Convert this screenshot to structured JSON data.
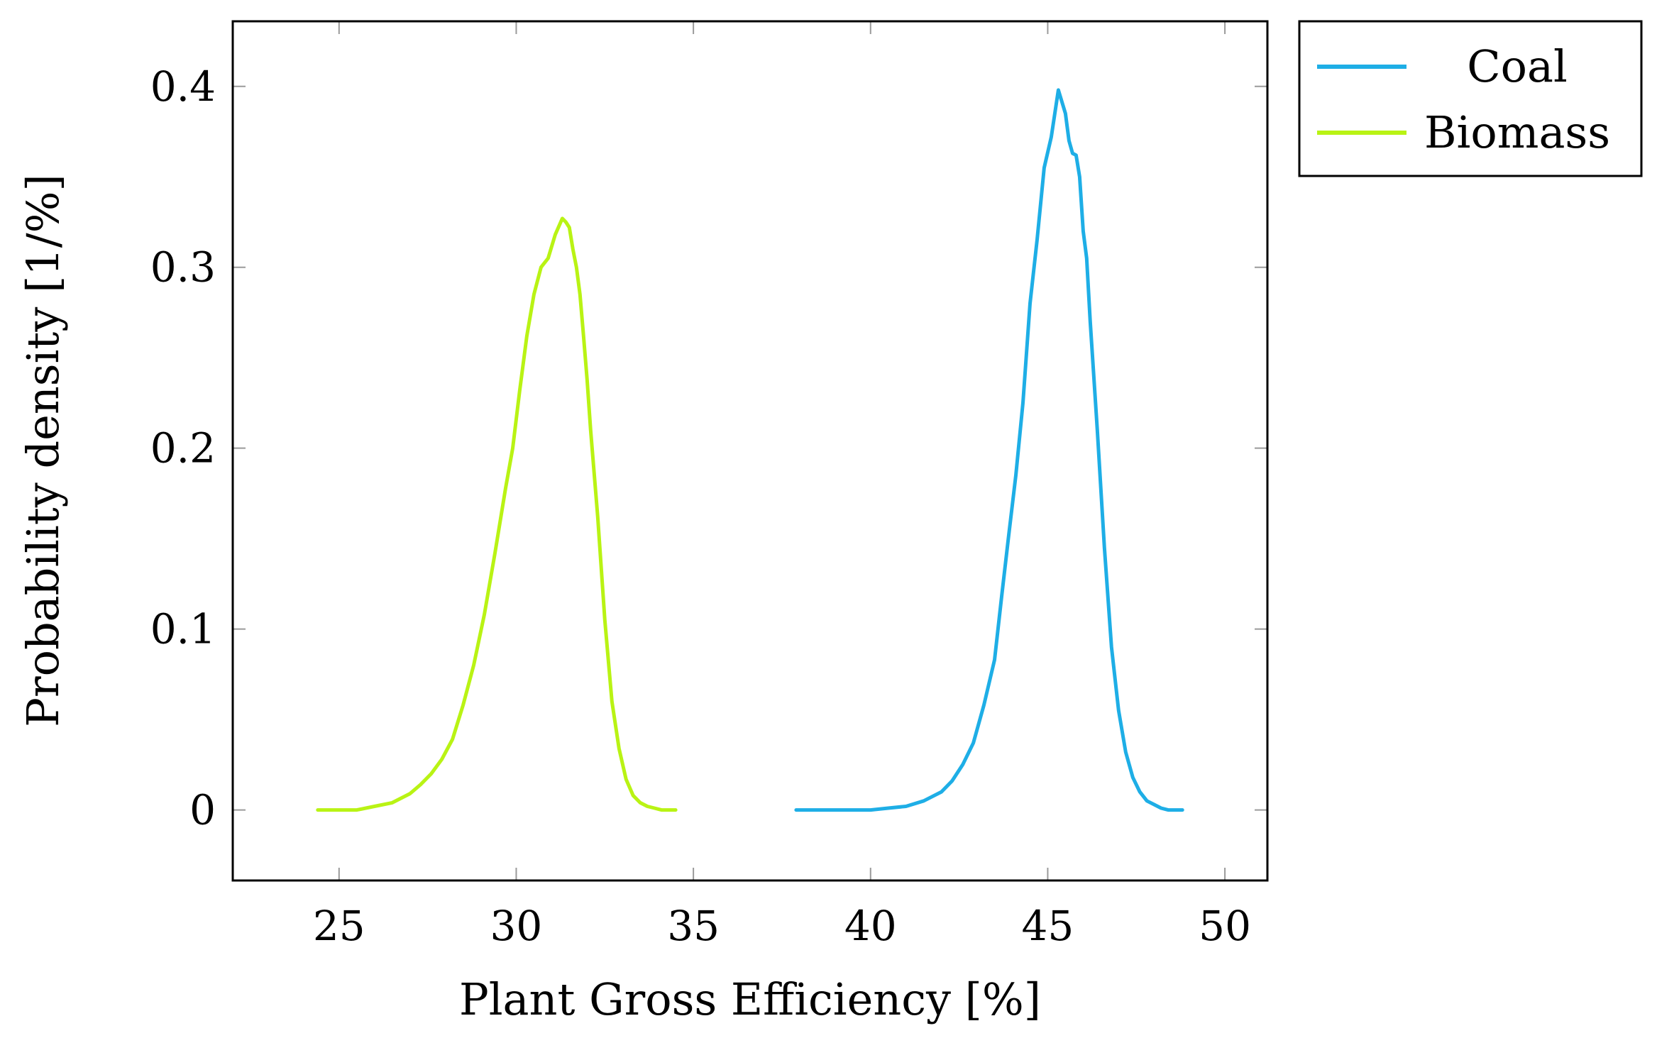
{
  "chart_data": {
    "type": "line",
    "xlabel": "Plant Gross Efficiency [%]",
    "ylabel": "Probability density [1/%]",
    "xlim": [
      22,
      51.2
    ],
    "ylim": [
      -0.039,
      0.436
    ],
    "xticks": [
      25,
      30,
      35,
      40,
      45,
      50
    ],
    "yticks": [
      0,
      0.1,
      0.2,
      0.3,
      0.4
    ],
    "xtick_labels": [
      "25",
      "30",
      "35",
      "40",
      "45",
      "50"
    ],
    "ytick_labels": [
      "0",
      "0.1",
      "0.2",
      "0.3",
      "0.4"
    ],
    "grid": false,
    "legend_position": "outside-top-right",
    "series": [
      {
        "name": "Coal",
        "color": "#1eaee6",
        "x": [
          37.9,
          39.0,
          40.0,
          40.5,
          41.0,
          41.5,
          42.0,
          42.3,
          42.6,
          42.9,
          43.2,
          43.5,
          43.7,
          43.9,
          44.1,
          44.3,
          44.5,
          44.7,
          44.9,
          45.1,
          45.3,
          45.5,
          45.6,
          45.7,
          45.8,
          45.9,
          46.0,
          46.1,
          46.2,
          46.4,
          46.6,
          46.8,
          47.0,
          47.2,
          47.4,
          47.6,
          47.8,
          48.0,
          48.2,
          48.4,
          48.6,
          48.8
        ],
        "y": [
          0.0,
          0.0,
          0.0,
          0.001,
          0.002,
          0.005,
          0.01,
          0.016,
          0.025,
          0.037,
          0.058,
          0.083,
          0.118,
          0.152,
          0.185,
          0.225,
          0.28,
          0.315,
          0.355,
          0.372,
          0.398,
          0.385,
          0.37,
          0.363,
          0.362,
          0.35,
          0.32,
          0.305,
          0.27,
          0.21,
          0.145,
          0.09,
          0.055,
          0.032,
          0.018,
          0.01,
          0.005,
          0.003,
          0.001,
          0.0,
          0.0,
          0.0
        ]
      },
      {
        "name": "Biomass",
        "color": "#b9f314",
        "x": [
          24.4,
          25.0,
          25.5,
          26.0,
          26.5,
          27.0,
          27.3,
          27.6,
          27.9,
          28.2,
          28.5,
          28.8,
          29.1,
          29.4,
          29.7,
          29.9,
          30.1,
          30.3,
          30.5,
          30.7,
          30.9,
          31.1,
          31.3,
          31.4,
          31.5,
          31.6,
          31.7,
          31.8,
          31.9,
          32.0,
          32.1,
          32.3,
          32.5,
          32.7,
          32.9,
          33.1,
          33.3,
          33.5,
          33.7,
          33.9,
          34.1,
          34.3,
          34.5
        ],
        "y": [
          0.0,
          0.0,
          0.0,
          0.002,
          0.004,
          0.009,
          0.014,
          0.02,
          0.028,
          0.039,
          0.058,
          0.08,
          0.108,
          0.142,
          0.178,
          0.2,
          0.232,
          0.262,
          0.285,
          0.3,
          0.305,
          0.318,
          0.327,
          0.325,
          0.322,
          0.31,
          0.3,
          0.285,
          0.262,
          0.238,
          0.21,
          0.162,
          0.105,
          0.06,
          0.034,
          0.017,
          0.008,
          0.004,
          0.002,
          0.001,
          0.0,
          0.0,
          0.0
        ]
      }
    ]
  }
}
